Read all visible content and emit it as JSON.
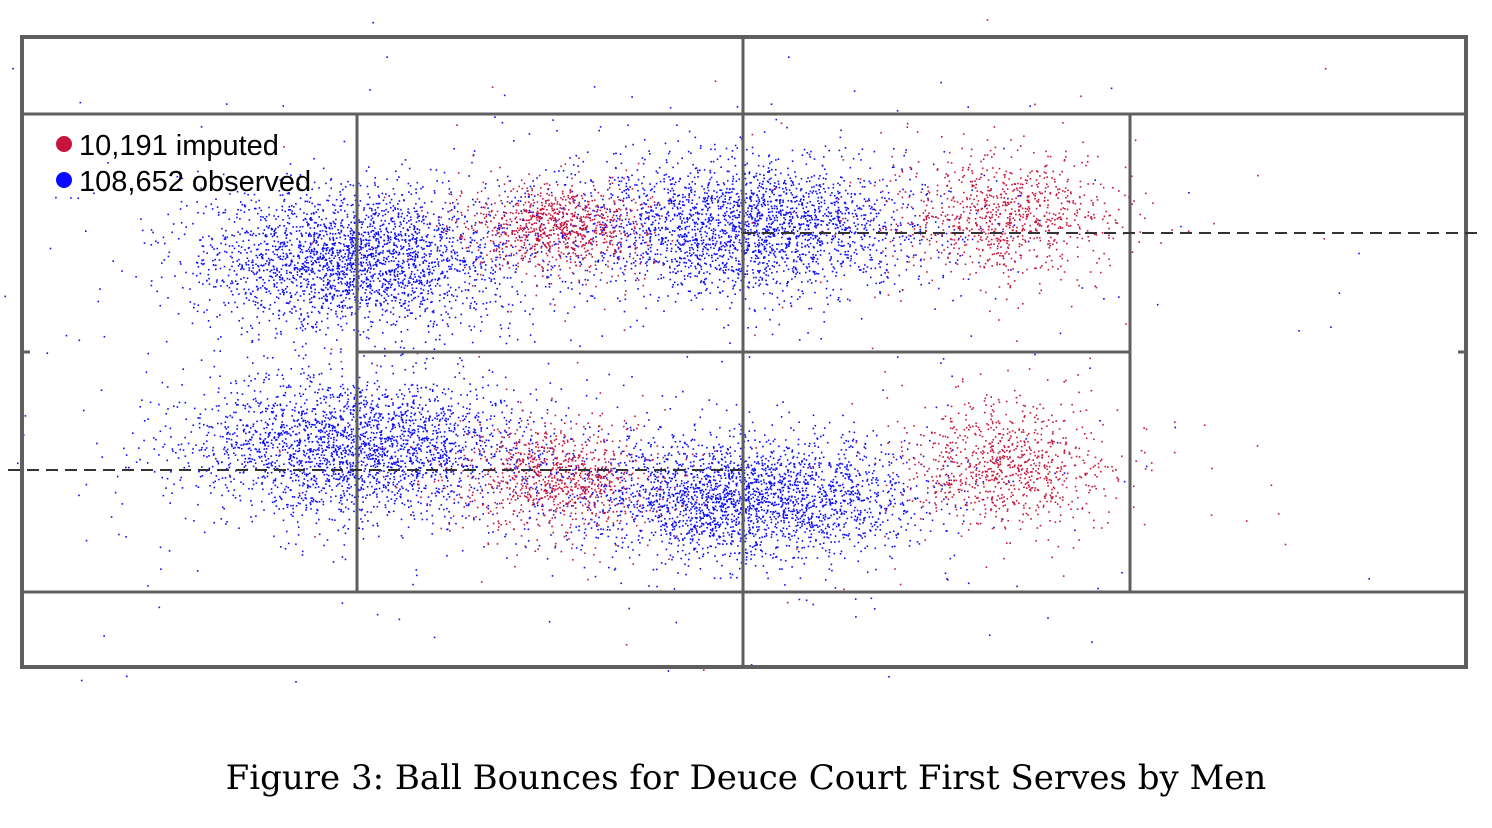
{
  "caption": "Figure 3: Ball Bounces for Deuce Court First Serves by Men",
  "colors": {
    "imputed": "#c8143c",
    "observed": "#0a0aff",
    "court_lines": "#5f5f5f",
    "dashed_line": "#333333"
  },
  "chart_data": {
    "type": "scatter",
    "legend_position": "top-left",
    "grid": false,
    "series": [
      {
        "name": "10,191 imputed",
        "color": "#c8143c",
        "count": 10191,
        "clusters": [
          {
            "center": [
              0.68,
              0.28
            ],
            "spread": [
              0.08,
              0.1
            ]
          },
          {
            "center": [
              0.68,
              0.68
            ],
            "spread": [
              0.07,
              0.1
            ]
          },
          {
            "center": [
              0.37,
              0.3
            ],
            "spread": [
              0.06,
              0.07
            ]
          },
          {
            "center": [
              0.37,
              0.7
            ],
            "spread": [
              0.07,
              0.09
            ]
          }
        ]
      },
      {
        "name": "108,652 observed",
        "color": "#0a0aff",
        "count": 108652,
        "clusters": [
          {
            "center": [
              0.5,
              0.3
            ],
            "spread": [
              0.13,
              0.11
            ]
          },
          {
            "center": [
              0.5,
              0.73
            ],
            "spread": [
              0.12,
              0.1
            ]
          },
          {
            "center": [
              0.23,
              0.35
            ],
            "spread": [
              0.11,
              0.11
            ]
          },
          {
            "center": [
              0.23,
              0.65
            ],
            "spread": [
              0.12,
              0.11
            ]
          }
        ]
      }
    ]
  }
}
